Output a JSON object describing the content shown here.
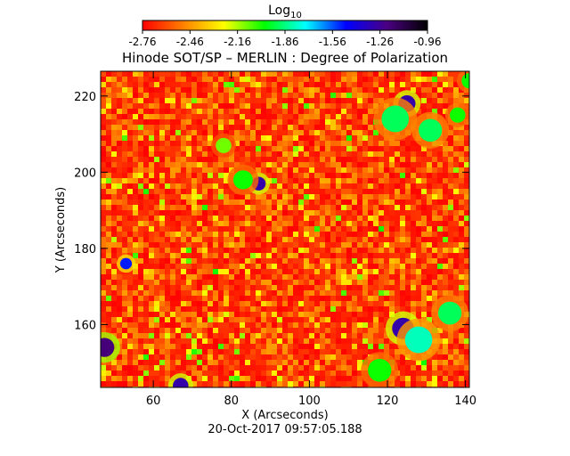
{
  "chart_data": {
    "type": "heatmap",
    "title": "Hinode SOT/SP – MERLIN : Degree of Polarization",
    "xlabel": "X (Arcseconds)",
    "ylabel": "Y (Arcseconds)",
    "timestamp": "20-Oct-2017 09:57:05.188",
    "xlim": [
      46.5,
      141
    ],
    "ylim": [
      143.5,
      226.5
    ],
    "x_ticks": [
      60,
      80,
      100,
      120,
      140
    ],
    "y_ticks": [
      160,
      180,
      200,
      220
    ],
    "colorbar": {
      "label_base": "Log",
      "label_sub": "10",
      "range": [
        -2.76,
        -0.96
      ],
      "ticks": [
        "-2.76",
        "-2.46",
        "-2.16",
        "-1.86",
        "-1.56",
        "-1.26",
        "-0.96"
      ],
      "colormap": [
        "#ff0000",
        "#ff8000",
        "#ffff00",
        "#00ff00",
        "#00ffff",
        "#0000ff",
        "#4b0082",
        "#000000"
      ]
    },
    "background_level": -2.7,
    "features": [
      {
        "x": 125,
        "y": 218,
        "level": -1.3,
        "radius": 2.2
      },
      {
        "x": 122,
        "y": 214,
        "level": -1.9,
        "radius": 3.5
      },
      {
        "x": 131,
        "y": 211,
        "level": -1.9,
        "radius": 3.0
      },
      {
        "x": 87,
        "y": 197,
        "level": -1.3,
        "radius": 1.8
      },
      {
        "x": 83,
        "y": 198,
        "level": -2.0,
        "radius": 2.5
      },
      {
        "x": 47.5,
        "y": 154,
        "level": -1.2,
        "radius": 2.5
      },
      {
        "x": 53,
        "y": 176,
        "level": -1.5,
        "radius": 1.5
      },
      {
        "x": 124,
        "y": 159,
        "level": -1.3,
        "radius": 2.8
      },
      {
        "x": 128,
        "y": 156,
        "level": -1.8,
        "radius": 3.5
      },
      {
        "x": 136,
        "y": 163,
        "level": -1.9,
        "radius": 3.0
      },
      {
        "x": 67,
        "y": 144,
        "level": -1.3,
        "radius": 2.0
      },
      {
        "x": 138,
        "y": 215,
        "level": -2.0,
        "radius": 2.0
      },
      {
        "x": 118,
        "y": 148,
        "level": -2.0,
        "radius": 3.0
      },
      {
        "x": 78,
        "y": 207,
        "level": -2.1,
        "radius": 2.0
      },
      {
        "x": 141,
        "y": 224,
        "level": -2.0,
        "radius": 2.0
      }
    ]
  }
}
